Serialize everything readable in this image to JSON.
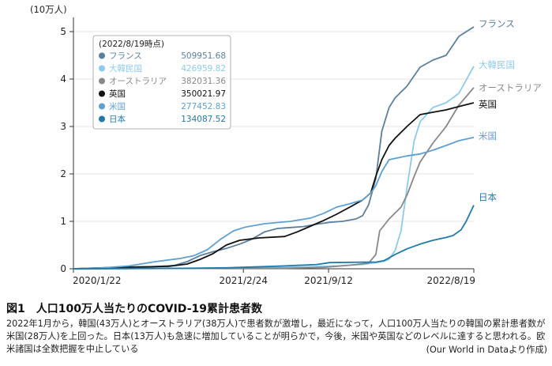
{
  "figure": {
    "title": "図1　人口100万人当たりのCOVID-19累計患者数",
    "caption": "2022年1月から，韓国(43万人)とオーストラリア(38万人)で患者数が激増し，最近になって，人口100万人当たりの韓国の累計患者数が米国(28万人)を上回った。日本(13万人)も急速に増加していることが明らかで，今後，米国や英国などのレベルに達すると思われる。欧米諸国は全数把握を中止している",
    "source": "(Our World in Dataより作成)"
  },
  "chart_data": {
    "type": "line",
    "ylabel": "(10万人)",
    "ylim": [
      0,
      5.2
    ],
    "yticks": [
      0,
      1,
      2,
      3,
      4,
      5
    ],
    "xlim": [
      "2020-01-22",
      "2022-08-19"
    ],
    "xticks": [
      {
        "date": "2020-01-22",
        "label": "2020/1/22"
      },
      {
        "date": "2021-02-24",
        "label": "2021/2/24"
      },
      {
        "date": "2021-09-12",
        "label": "2021/9/12"
      },
      {
        "date": "2022-08-19",
        "label": "2022/8/19"
      }
    ],
    "legend": {
      "title": "(2022/8/19時点)",
      "placement": "top-left",
      "entries": [
        {
          "name": "フランス",
          "value": "509951.68",
          "color": "#5b7f9c"
        },
        {
          "name": "大韓民国",
          "value": "426959.82",
          "color": "#8ccbef"
        },
        {
          "name": "オーストラリア",
          "value": "382031.36",
          "color": "#888888"
        },
        {
          "name": "英国",
          "value": "350021.97",
          "color": "#111111"
        },
        {
          "name": "米国",
          "value": "277452.83",
          "color": "#5ea0d4"
        },
        {
          "name": "日本",
          "value": "134087.52",
          "color": "#1f79aa"
        }
      ]
    },
    "series": [
      {
        "name": "フランス",
        "end_label": "フランス",
        "color": "#5b7f9c",
        "x": [
          "2020-01-22",
          "2020-04-01",
          "2020-07-01",
          "2020-09-15",
          "2020-10-15",
          "2020-11-15",
          "2020-12-15",
          "2021-01-15",
          "2021-02-15",
          "2021-03-15",
          "2021-04-15",
          "2021-05-15",
          "2021-06-15",
          "2021-07-15",
          "2021-08-15",
          "2021-09-15",
          "2021-10-15",
          "2021-11-15",
          "2021-12-01",
          "2021-12-15",
          "2022-01-01",
          "2022-01-15",
          "2022-02-01",
          "2022-02-15",
          "2022-03-15",
          "2022-04-15",
          "2022-05-15",
          "2022-06-15",
          "2022-07-15",
          "2022-08-19"
        ],
        "y": [
          0,
          0.01,
          0.03,
          0.07,
          0.15,
          0.28,
          0.36,
          0.43,
          0.52,
          0.62,
          0.78,
          0.85,
          0.87,
          0.89,
          0.94,
          0.98,
          1.0,
          1.05,
          1.12,
          1.35,
          1.9,
          2.9,
          3.4,
          3.6,
          3.85,
          4.25,
          4.4,
          4.5,
          4.9,
          5.1
        ]
      },
      {
        "name": "大韓民国",
        "end_label": "大韓民国",
        "color": "#8ccbef",
        "x": [
          "2020-01-22",
          "2020-06-01",
          "2021-01-01",
          "2021-06-01",
          "2021-10-01",
          "2021-12-01",
          "2022-01-01",
          "2022-01-20",
          "2022-02-01",
          "2022-02-15",
          "2022-03-01",
          "2022-03-15",
          "2022-04-01",
          "2022-04-15",
          "2022-05-15",
          "2022-06-15",
          "2022-07-15",
          "2022-08-19"
        ],
        "y": [
          0,
          0.001,
          0.013,
          0.028,
          0.06,
          0.09,
          0.13,
          0.16,
          0.2,
          0.38,
          0.8,
          1.7,
          2.7,
          3.1,
          3.4,
          3.5,
          3.7,
          4.27
        ]
      },
      {
        "name": "オーストラリア",
        "end_label": "オーストラリア",
        "color": "#888888",
        "x": [
          "2020-01-22",
          "2020-08-01",
          "2021-01-01",
          "2021-06-01",
          "2021-09-01",
          "2021-11-01",
          "2021-12-15",
          "2022-01-01",
          "2022-01-10",
          "2022-02-01",
          "2022-03-01",
          "2022-03-15",
          "2022-04-01",
          "2022-04-15",
          "2022-05-15",
          "2022-06-15",
          "2022-07-15",
          "2022-08-19"
        ],
        "y": [
          0,
          0.008,
          0.01,
          0.012,
          0.03,
          0.075,
          0.12,
          0.3,
          0.8,
          1.05,
          1.3,
          1.55,
          1.95,
          2.25,
          2.65,
          3.0,
          3.45,
          3.82
        ]
      },
      {
        "name": "英国",
        "end_label": "英国",
        "color": "#111111",
        "x": [
          "2020-01-22",
          "2020-05-01",
          "2020-09-01",
          "2020-10-15",
          "2020-11-15",
          "2020-12-15",
          "2021-01-15",
          "2021-02-15",
          "2021-04-01",
          "2021-06-01",
          "2021-07-01",
          "2021-08-01",
          "2021-09-01",
          "2021-10-01",
          "2021-11-01",
          "2021-12-01",
          "2021-12-20",
          "2022-01-01",
          "2022-01-15",
          "2022-02-01",
          "2022-02-15",
          "2022-03-15",
          "2022-04-15",
          "2022-05-15",
          "2022-06-15",
          "2022-07-15",
          "2022-08-19"
        ],
        "y": [
          0,
          0.03,
          0.05,
          0.1,
          0.2,
          0.32,
          0.5,
          0.6,
          0.65,
          0.68,
          0.78,
          0.9,
          1.02,
          1.15,
          1.3,
          1.45,
          1.6,
          1.95,
          2.3,
          2.6,
          2.75,
          3.0,
          3.25,
          3.3,
          3.35,
          3.42,
          3.5
        ]
      },
      {
        "name": "米国",
        "end_label": "米国",
        "color": "#5ea0d4",
        "x": [
          "2020-01-22",
          "2020-04-01",
          "2020-06-01",
          "2020-08-01",
          "2020-10-01",
          "2020-11-01",
          "2020-12-01",
          "2021-01-01",
          "2021-02-01",
          "2021-03-01",
          "2021-04-15",
          "2021-06-15",
          "2021-08-01",
          "2021-09-01",
          "2021-10-01",
          "2021-11-01",
          "2021-12-01",
          "2021-12-20",
          "2022-01-01",
          "2022-01-15",
          "2022-02-01",
          "2022-03-15",
          "2022-04-15",
          "2022-05-15",
          "2022-06-15",
          "2022-07-15",
          "2022-08-19"
        ],
        "y": [
          0,
          0.02,
          0.06,
          0.15,
          0.22,
          0.28,
          0.4,
          0.62,
          0.8,
          0.88,
          0.95,
          1.0,
          1.07,
          1.17,
          1.3,
          1.37,
          1.45,
          1.6,
          1.75,
          2.05,
          2.3,
          2.38,
          2.42,
          2.5,
          2.6,
          2.7,
          2.77
        ]
      },
      {
        "name": "日本",
        "end_label": "日本",
        "color": "#1f79aa",
        "x": [
          "2020-01-22",
          "2020-10-01",
          "2021-01-15",
          "2021-06-01",
          "2021-08-15",
          "2021-09-15",
          "2021-12-01",
          "2022-01-01",
          "2022-01-20",
          "2022-02-15",
          "2022-03-15",
          "2022-04-15",
          "2022-05-15",
          "2022-06-15",
          "2022-07-01",
          "2022-07-20",
          "2022-08-01",
          "2022-08-19"
        ],
        "y": [
          0,
          0.01,
          0.02,
          0.06,
          0.09,
          0.13,
          0.14,
          0.14,
          0.17,
          0.3,
          0.42,
          0.52,
          0.6,
          0.66,
          0.7,
          0.82,
          1.0,
          1.34
        ]
      }
    ]
  }
}
